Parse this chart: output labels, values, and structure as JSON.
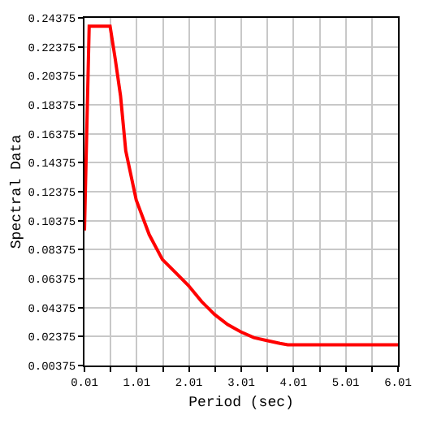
{
  "chart_data": {
    "type": "line",
    "xlabel": "Period (sec)",
    "ylabel": "Spectral Data",
    "x": [
      0.01,
      0.1,
      0.5,
      0.6,
      0.7,
      0.8,
      1.0,
      1.25,
      1.5,
      1.75,
      2.0,
      2.25,
      2.5,
      2.75,
      3.0,
      3.25,
      3.5,
      3.75,
      3.9,
      4.0,
      6.01
    ],
    "series": [
      {
        "color": "#ff0000",
        "values": [
          0.097,
          0.238,
          0.238,
          0.215,
          0.19,
          0.152,
          0.118,
          0.094,
          0.077,
          0.068,
          0.059,
          0.048,
          0.039,
          0.032,
          0.027,
          0.023,
          0.021,
          0.019,
          0.018,
          0.018,
          0.018
        ]
      }
    ],
    "xlim": [
      0.01,
      6.01
    ],
    "ylim": [
      0.00375,
      0.24375
    ],
    "xticks": [
      0.01,
      {
        "value": 0.51,
        "label": null
      },
      1.01,
      {
        "value": 1.51,
        "label": null
      },
      2.01,
      {
        "value": 2.51,
        "label": null
      },
      3.01,
      {
        "value": 3.51,
        "label": null
      },
      4.01,
      {
        "value": 4.51,
        "label": null
      },
      5.01,
      {
        "value": 5.51,
        "label": null
      },
      6.01
    ],
    "yticks": [
      0.00375,
      0.02375,
      0.04375,
      0.06375,
      0.08375,
      0.10375,
      0.12375,
      0.14375,
      0.16375,
      0.18375,
      0.20375,
      0.22375,
      0.24375
    ],
    "grid": true,
    "line_style": "solid",
    "marker": "none"
  }
}
